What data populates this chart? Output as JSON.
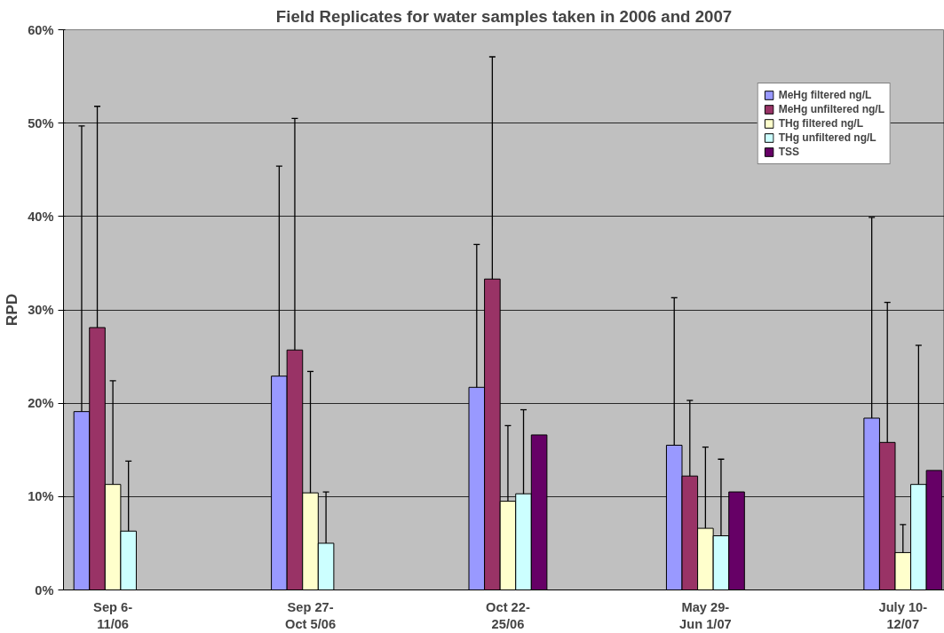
{
  "chart_data": {
    "type": "bar",
    "title": "Field Replicates for water samples taken in 2006 and 2007",
    "ylabel": "RPD",
    "categories": [
      "Sep 6-\n11/06",
      "Sep 27-\nOct 5/06",
      "Oct 22-\n25/06",
      "May 29-\nJun 1/07",
      "July 10-\n12/07"
    ],
    "series": [
      {
        "name": "MeHg filtered ng/L",
        "color": "#9999ff",
        "values": [
          19.1,
          22.9,
          21.7,
          15.5,
          18.4
        ],
        "errors": [
          [
            19.1,
            49.7
          ],
          [
            22.9,
            45.4
          ],
          [
            21.7,
            37.0
          ],
          [
            15.5,
            31.3
          ],
          [
            18.4,
            39.9
          ]
        ]
      },
      {
        "name": "MeHg unfiltered ng/L",
        "color": "#993366",
        "values": [
          28.1,
          25.7,
          33.3,
          12.2,
          15.8
        ],
        "errors": [
          [
            28.1,
            51.8
          ],
          [
            25.7,
            50.5
          ],
          [
            33.3,
            57.1
          ],
          [
            12.2,
            20.3
          ],
          [
            15.8,
            30.8
          ]
        ]
      },
      {
        "name": "THg filtered ng/L",
        "color": "#ffffcc",
        "values": [
          11.3,
          10.4,
          9.5,
          6.6,
          4.0
        ],
        "errors": [
          [
            11.3,
            22.4
          ],
          [
            10.4,
            23.4
          ],
          [
            9.5,
            17.6
          ],
          [
            6.6,
            15.3
          ],
          [
            4.0,
            7.0
          ]
        ]
      },
      {
        "name": "THg unfiltered ng/L",
        "color": "#ccffff",
        "values": [
          6.3,
          5.0,
          10.3,
          5.8,
          11.3
        ],
        "errors": [
          [
            6.3,
            13.8
          ],
          [
            5.0,
            10.5
          ],
          [
            10.3,
            19.3
          ],
          [
            5.8,
            14.0
          ],
          [
            11.3,
            26.2
          ]
        ]
      },
      {
        "name": "TSS",
        "color": "#660066",
        "values": [
          null,
          null,
          16.6,
          10.5,
          12.8
        ]
      }
    ],
    "ylim": [
      0,
      60
    ],
    "yticks": [
      {
        "value": 0,
        "label": "0%"
      },
      {
        "value": 10,
        "label": "10%"
      },
      {
        "value": 20,
        "label": "20%"
      },
      {
        "value": 30,
        "label": "30%"
      },
      {
        "value": 40,
        "label": "40%"
      },
      {
        "value": 50,
        "label": "50%"
      },
      {
        "value": 60,
        "label": "60%"
      }
    ],
    "grid": "y",
    "legend": "top right"
  }
}
